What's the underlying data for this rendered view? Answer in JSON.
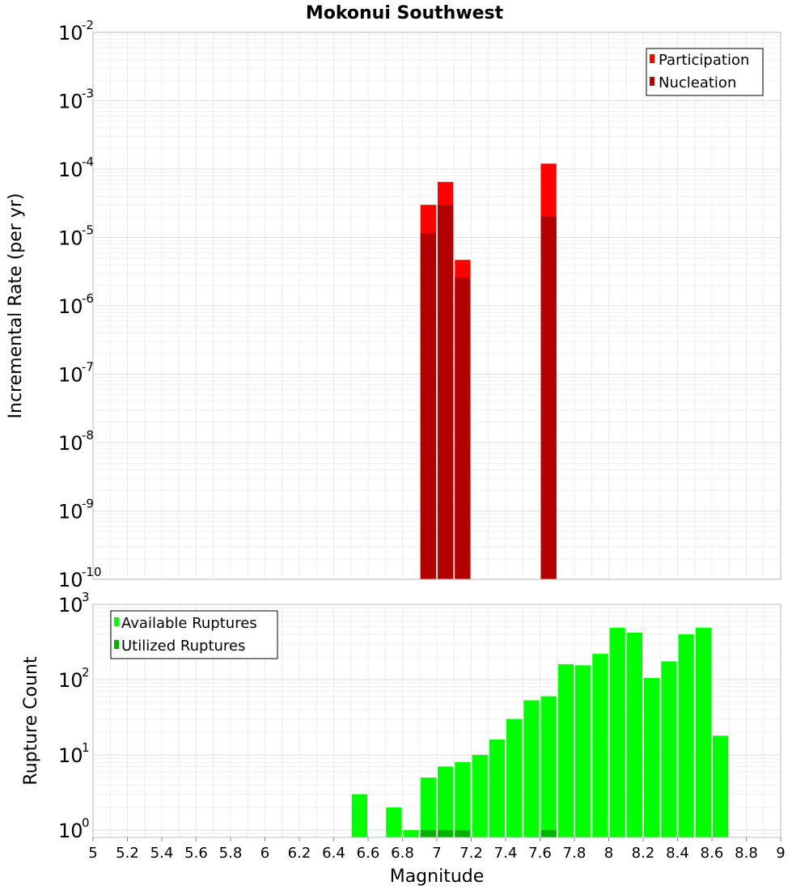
{
  "chart_data": [
    {
      "type": "bar",
      "title": "Mokonui Southwest",
      "xlabel": "Magnitude",
      "ylabel": "Incremental Rate (per yr)",
      "yscale": "log",
      "ylim": [
        1e-10,
        0.01
      ],
      "xlim": [
        5,
        9
      ],
      "bin_width": 0.1,
      "y_tick_labels": [
        {
          "base": "10",
          "exp": "-10",
          "value": 1e-10
        },
        {
          "base": "10",
          "exp": "-9",
          "value": 1e-09
        },
        {
          "base": "10",
          "exp": "-8",
          "value": 1e-08
        },
        {
          "base": "10",
          "exp": "-7",
          "value": 1e-07
        },
        {
          "base": "10",
          "exp": "-6",
          "value": 1e-06
        },
        {
          "base": "10",
          "exp": "-5",
          "value": 1e-05
        },
        {
          "base": "10",
          "exp": "-4",
          "value": 0.0001
        },
        {
          "base": "10",
          "exp": "-3",
          "value": 0.001
        },
        {
          "base": "10",
          "exp": "-2",
          "value": 0.01
        }
      ],
      "legend": {
        "placement": "top-right",
        "entries": [
          "Participation",
          "Nucleation"
        ]
      },
      "series": [
        {
          "name": "Participation",
          "color": "#ff0000",
          "x": [
            6.95,
            7.05,
            7.15,
            7.65
          ],
          "values": [
            3e-05,
            6.5e-05,
            4.7e-06,
            0.00012
          ]
        },
        {
          "name": "Nucleation",
          "color": "#b30000",
          "x": [
            6.95,
            7.05,
            7.15,
            7.65
          ],
          "values": [
            1.15e-05,
            3e-05,
            2.6e-06,
            2e-05
          ]
        }
      ]
    },
    {
      "type": "bar",
      "title": "",
      "xlabel": "Magnitude",
      "ylabel": "Rupture Count",
      "yscale": "log",
      "ylim": [
        0.8,
        1000
      ],
      "xlim": [
        5,
        9
      ],
      "bin_width": 0.1,
      "x_tick_labels": [
        "5",
        "5.2",
        "5.4",
        "5.6",
        "5.8",
        "6",
        "6.2",
        "6.4",
        "6.6",
        "6.8",
        "7",
        "7.2",
        "7.4",
        "7.6",
        "7.8",
        "8",
        "8.2",
        "8.4",
        "8.6",
        "8.8",
        "9"
      ],
      "y_tick_labels": [
        {
          "base": "10",
          "exp": "0",
          "value": 1
        },
        {
          "base": "10",
          "exp": "1",
          "value": 10
        },
        {
          "base": "10",
          "exp": "2",
          "value": 100
        },
        {
          "base": "10",
          "exp": "3",
          "value": 1000
        }
      ],
      "legend": {
        "placement": "top-left",
        "entries": [
          "Available Ruptures",
          "Utilized Ruptures"
        ]
      },
      "series": [
        {
          "name": "Available Ruptures",
          "color": "#00ff00",
          "x": [
            6.55,
            6.75,
            6.85,
            6.95,
            7.05,
            7.15,
            7.25,
            7.35,
            7.45,
            7.55,
            7.65,
            7.75,
            7.85,
            7.95,
            8.05,
            8.15,
            8.25,
            8.35,
            8.45,
            8.55,
            8.65
          ],
          "values": [
            3,
            2,
            1,
            5,
            7,
            8,
            10,
            16,
            30,
            53,
            60,
            160,
            155,
            220,
            490,
            420,
            105,
            175,
            400,
            490,
            18
          ]
        },
        {
          "name": "Utilized Ruptures",
          "color": "#00b300",
          "x": [
            6.95,
            7.05,
            7.15,
            7.65
          ],
          "values": [
            1,
            1,
            1,
            1
          ]
        }
      ]
    }
  ]
}
